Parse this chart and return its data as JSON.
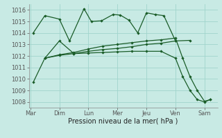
{
  "title": "Pression niveau de la mer( hPa )",
  "bg_color": "#c8eae4",
  "grid_color": "#a0d4cc",
  "line_color": "#1a5c28",
  "x_labels": [
    "Mar",
    "Dim",
    "Lun",
    "Mer",
    "Jeu",
    "Ven",
    "Sam"
  ],
  "ylim": [
    1007.5,
    1016.5
  ],
  "yticks": [
    1008,
    1009,
    1010,
    1011,
    1012,
    1013,
    1014,
    1015,
    1016
  ],
  "s1x": [
    0.1,
    0.5,
    1.0,
    1.35,
    1.85,
    2.1,
    2.45,
    2.85,
    3.1,
    3.4,
    3.7,
    4.0,
    4.3,
    4.6,
    5.0,
    5.5
  ],
  "s1y": [
    1014.0,
    1015.5,
    1015.2,
    1013.3,
    1016.1,
    1015.0,
    1015.05,
    1015.6,
    1015.55,
    1015.1,
    1014.0,
    1015.75,
    1015.6,
    1015.5,
    1013.3,
    1013.35
  ],
  "s2x": [
    0.5,
    1.0,
    1.5,
    2.0,
    2.5,
    3.0,
    3.5,
    4.0,
    4.5,
    5.0
  ],
  "s2y": [
    1011.8,
    1012.05,
    1012.2,
    1012.4,
    1012.55,
    1012.65,
    1012.8,
    1013.0,
    1013.1,
    1013.3
  ],
  "s3x": [
    0.1,
    0.5,
    1.0,
    1.5,
    2.0,
    2.5,
    3.0,
    3.5,
    4.0,
    4.5,
    5.0,
    5.25,
    5.5,
    5.75,
    6.0,
    6.2
  ],
  "s3y": [
    1009.7,
    1011.8,
    1013.3,
    1012.2,
    1012.25,
    1012.3,
    1012.35,
    1012.4,
    1012.4,
    1012.4,
    1011.8,
    1010.2,
    1009.0,
    1008.2,
    1008.0,
    1008.2
  ],
  "s4x": [
    0.5,
    1.0,
    1.5,
    2.0,
    2.5,
    3.0,
    3.5,
    4.0,
    4.5,
    5.0,
    5.25,
    5.5,
    5.75,
    6.0,
    6.2
  ],
  "s4y": [
    1011.8,
    1012.1,
    1012.3,
    1012.6,
    1012.85,
    1013.0,
    1013.15,
    1013.3,
    1013.4,
    1013.55,
    1011.8,
    1010.2,
    1009.0,
    1008.05,
    1008.2
  ]
}
